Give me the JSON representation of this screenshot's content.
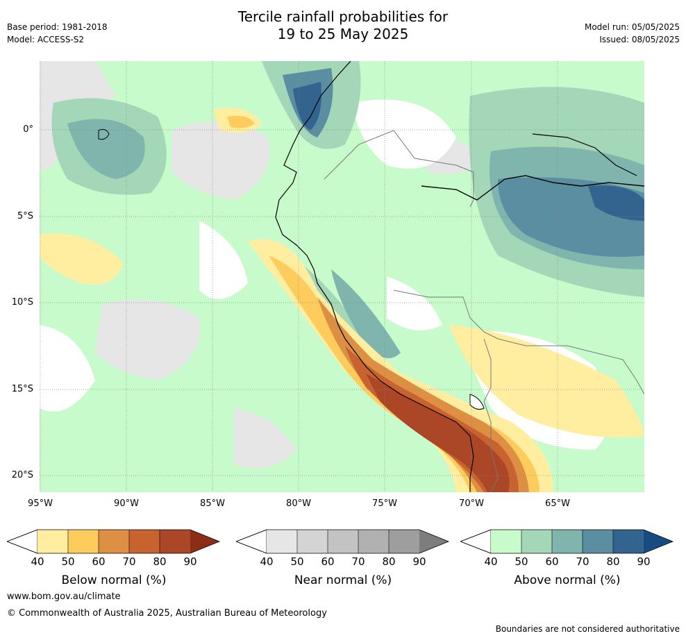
{
  "title": {
    "line1": "Tercile rainfall probabilities for",
    "line2": "19 to 25 May 2025"
  },
  "meta_left": {
    "base_period": "Base period: 1981-2018",
    "model": "Model: ACCESS-S2"
  },
  "meta_right": {
    "model_run": "Model run: 05/05/2025",
    "issued": "Issued: 08/05/2025"
  },
  "map": {
    "lat_labels": [
      "0°",
      "5°S",
      "10°S",
      "15°S",
      "20°S"
    ],
    "lon_labels": [
      "95°W",
      "90°W",
      "85°W",
      "80°W",
      "75°W",
      "70°W",
      "65°W"
    ]
  },
  "colorbars": [
    {
      "title": "Below normal (%)",
      "ticks": [
        "40",
        "50",
        "60",
        "70",
        "80",
        "90"
      ],
      "colors": [
        "#ffeda0",
        "#fecc5c",
        "#dd8f44",
        "#c8622e",
        "#ab4626",
        "#8c2d18"
      ]
    },
    {
      "title": "Near normal (%)",
      "ticks": [
        "40",
        "50",
        "60",
        "70",
        "80",
        "90"
      ],
      "colors": [
        "#e6e6e6",
        "#d4d4d4",
        "#c3c3c3",
        "#b1b1b1",
        "#9e9e9e",
        "#7d7d7d"
      ]
    },
    {
      "title": "Above normal (%)",
      "ticks": [
        "40",
        "50",
        "60",
        "70",
        "80",
        "90"
      ],
      "colors": [
        "#c8fbcb",
        "#a4d6b8",
        "#7fb5ad",
        "#5a8ea0",
        "#33638f",
        "#174c82"
      ]
    }
  ],
  "footer": {
    "url": "www.bom.gov.au/climate",
    "copyright": "© Commonwealth of Australia 2025, Australian Bureau of Meteorology",
    "disclaimer": "Boundaries are not considered authoritative"
  }
}
